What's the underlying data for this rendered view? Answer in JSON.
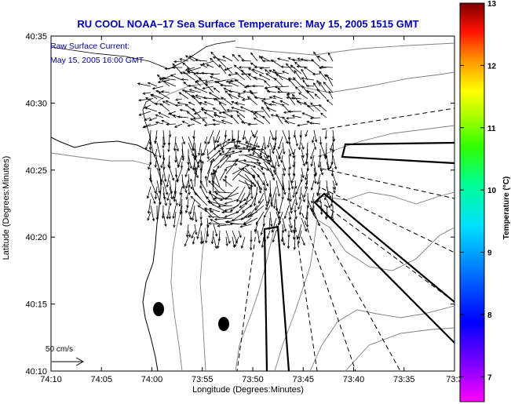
{
  "title": "RU COOL  NOAA–17  Sea Surface Temperature:  May 15, 2005 1515 GMT",
  "annotation_line1": "Raw Surface Current:",
  "annotation_line2": "May 15, 2005 16:00 GMT",
  "x_axis_label": "Longitude (Degrees:Minutes)",
  "y_axis_label": "Latitude (Degrees:Minutes)",
  "x_ticks": [
    "74:10",
    "74:05",
    "74:00",
    "73:55",
    "73:50",
    "73:45",
    "73:40",
    "73:35",
    "73:3"
  ],
  "y_ticks": [
    "40:35",
    "40:30",
    "40:25",
    "40:20",
    "40:15",
    "40:10"
  ],
  "scale_label": "50 cm/s",
  "colorbar": {
    "label": "Temperature (°C)",
    "ticks": [
      "13",
      "12",
      "11",
      "10",
      "9",
      "8",
      "7"
    ],
    "min": 6.6,
    "max": 13,
    "colors": [
      "#ff00ff",
      "#8000ff",
      "#0000ff",
      "#0080ff",
      "#00ffff",
      "#00ff80",
      "#00ff00",
      "#80ff00",
      "#ffff00",
      "#ff8000",
      "#ff0000",
      "#800000"
    ]
  },
  "markers": [
    {
      "name": "buoy-left",
      "lon_min": -119.0,
      "lat_min": 14.6
    },
    {
      "name": "buoy-right",
      "lon_min": -117.4,
      "lat_min": 13.5
    }
  ]
}
